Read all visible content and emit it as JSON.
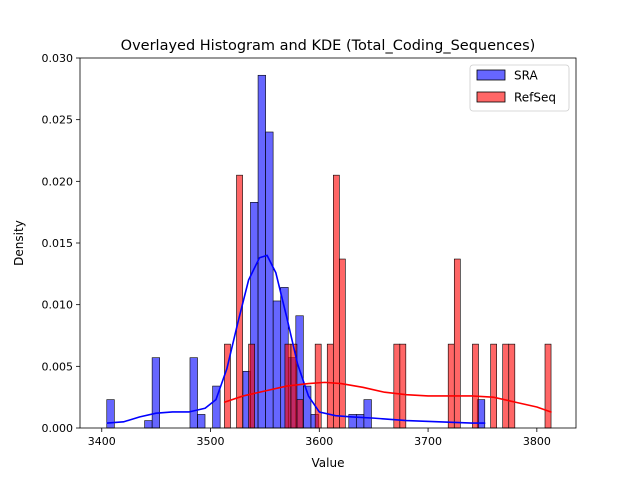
{
  "chart_data": {
    "type": "histogram",
    "title": "Overlayed Histogram and KDE (Total_Coding_Sequences)",
    "xlabel": "Value",
    "ylabel": "Density",
    "xlim": [
      3380,
      3836
    ],
    "ylim": [
      0,
      0.03
    ],
    "xticks": [
      3400,
      3500,
      3600,
      3700,
      3800
    ],
    "yticks": [
      0.0,
      0.005,
      0.01,
      0.015,
      0.02,
      0.025,
      0.03
    ],
    "ytick_labels": [
      "0.000",
      "0.005",
      "0.010",
      "0.015",
      "0.020",
      "0.025",
      "0.030"
    ],
    "grid": false,
    "legend_position": "top-right",
    "series": [
      {
        "name": "SRA",
        "color": "#0000ff",
        "bin_width": 6.95,
        "bins": [
          {
            "x0": 3404.6,
            "height": 0.0023
          },
          {
            "x0": 3439.4,
            "height": 0.0006
          },
          {
            "x0": 3446.3,
            "height": 0.0057
          },
          {
            "x0": 3481.1,
            "height": 0.0057
          },
          {
            "x0": 3488.0,
            "height": 0.0011
          },
          {
            "x0": 3501.9,
            "height": 0.0034
          },
          {
            "x0": 3529.8,
            "height": 0.0046
          },
          {
            "x0": 3536.7,
            "height": 0.0183
          },
          {
            "x0": 3543.7,
            "height": 0.0286
          },
          {
            "x0": 3550.6,
            "height": 0.024
          },
          {
            "x0": 3557.6,
            "height": 0.0103
          },
          {
            "x0": 3564.5,
            "height": 0.0114
          },
          {
            "x0": 3571.5,
            "height": 0.0057
          },
          {
            "x0": 3578.4,
            "height": 0.0091
          },
          {
            "x0": 3585.4,
            "height": 0.0034
          },
          {
            "x0": 3592.3,
            "height": 0.0011
          },
          {
            "x0": 3627.1,
            "height": 0.0011
          },
          {
            "x0": 3634.0,
            "height": 0.0011
          },
          {
            "x0": 3641.0,
            "height": 0.0023
          },
          {
            "x0": 3745.2,
            "height": 0.0023
          }
        ],
        "kde": {
          "x": [
            3405,
            3420,
            3435,
            3450,
            3465,
            3480,
            3495,
            3505,
            3515,
            3525,
            3535,
            3545,
            3552,
            3560,
            3570,
            3580,
            3590,
            3600,
            3615,
            3630,
            3650,
            3680,
            3710,
            3740,
            3752
          ],
          "y": [
            0.0004,
            0.0005,
            0.0009,
            0.0012,
            0.0013,
            0.0013,
            0.0016,
            0.0023,
            0.0048,
            0.0085,
            0.012,
            0.0138,
            0.014,
            0.0126,
            0.009,
            0.0052,
            0.0026,
            0.0013,
            0.001,
            0.0009,
            0.0008,
            0.0006,
            0.0005,
            0.0004,
            0.0004
          ]
        }
      },
      {
        "name": "RefSeq",
        "color": "#ff0000",
        "bin_width": 5.56,
        "bins": [
          {
            "x0": 3512.8,
            "height": 0.0068
          },
          {
            "x0": 3523.9,
            "height": 0.0205
          },
          {
            "x0": 3535.0,
            "height": 0.0068
          },
          {
            "x0": 3568.4,
            "height": 0.0068
          },
          {
            "x0": 3573.9,
            "height": 0.0068
          },
          {
            "x0": 3579.5,
            "height": 0.0023
          },
          {
            "x0": 3596.2,
            "height": 0.0068
          },
          {
            "x0": 3607.3,
            "height": 0.0068
          },
          {
            "x0": 3612.9,
            "height": 0.0205
          },
          {
            "x0": 3618.4,
            "height": 0.0137
          },
          {
            "x0": 3668.5,
            "height": 0.0068
          },
          {
            "x0": 3674.0,
            "height": 0.0068
          },
          {
            "x0": 3718.5,
            "height": 0.0068
          },
          {
            "x0": 3724.1,
            "height": 0.0137
          },
          {
            "x0": 3740.8,
            "height": 0.0068
          },
          {
            "x0": 3757.5,
            "height": 0.0068
          },
          {
            "x0": 3768.6,
            "height": 0.0068
          },
          {
            "x0": 3774.2,
            "height": 0.0068
          },
          {
            "x0": 3807.5,
            "height": 0.0068
          }
        ],
        "kde": {
          "x": [
            3513,
            3530,
            3550,
            3570,
            3590,
            3605,
            3620,
            3640,
            3660,
            3680,
            3700,
            3720,
            3740,
            3760,
            3780,
            3800,
            3813
          ],
          "y": [
            0.0021,
            0.0026,
            0.003,
            0.0034,
            0.0036,
            0.0037,
            0.0036,
            0.0033,
            0.0029,
            0.0027,
            0.0026,
            0.0026,
            0.0026,
            0.0025,
            0.0021,
            0.0017,
            0.0013
          ]
        }
      }
    ]
  }
}
